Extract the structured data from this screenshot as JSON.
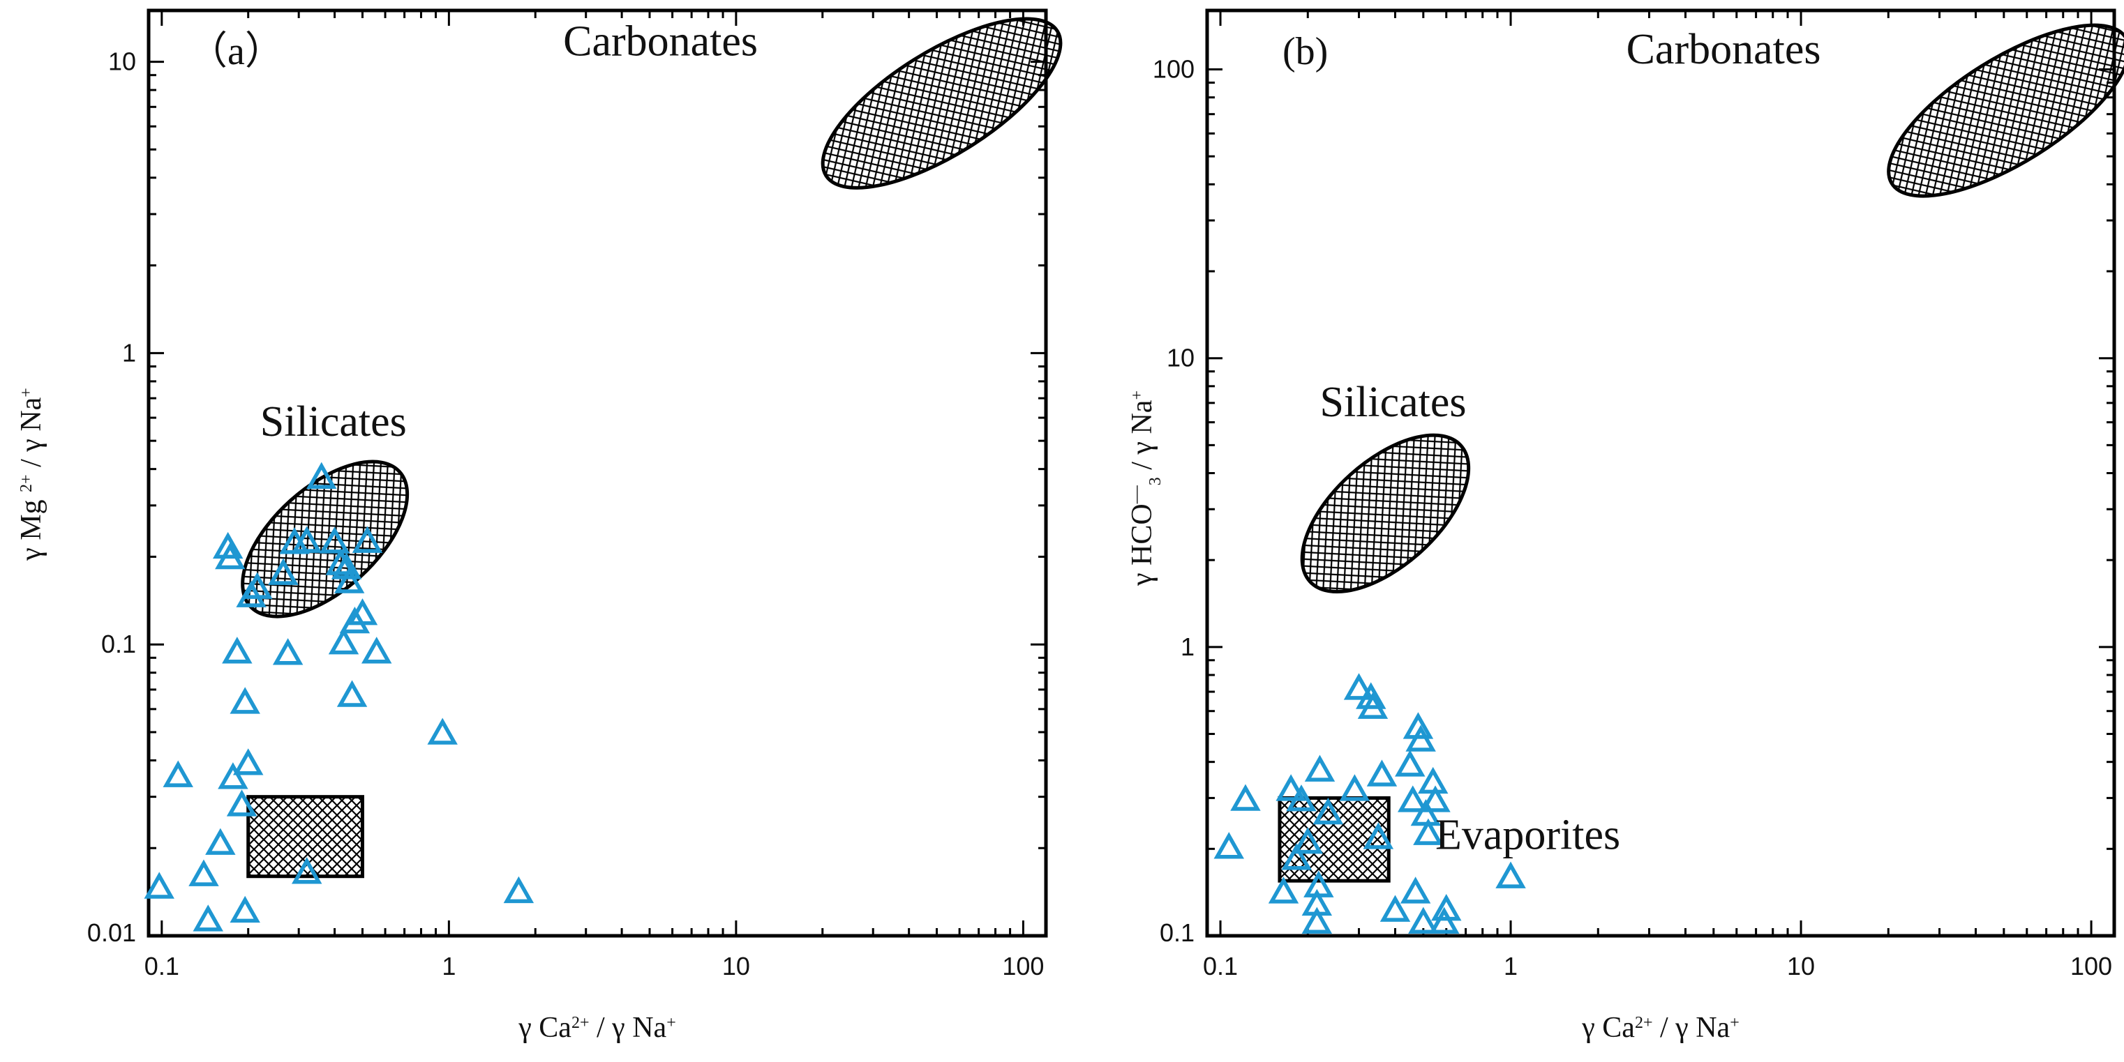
{
  "chart_data": [
    {
      "type": "scatter",
      "panel_label": "（a）",
      "x_scale": "log",
      "y_scale": "log",
      "xlim": [
        0.09,
        120
      ],
      "ylim": [
        0.01,
        15
      ],
      "x_ticks": [
        0.1,
        1,
        10,
        100
      ],
      "x_tick_labels": [
        "0.1",
        "1",
        "10",
        "100"
      ],
      "y_ticks": [
        0.01,
        0.1,
        1,
        10
      ],
      "y_tick_labels": [
        "0.01",
        "0.1",
        "1",
        "10"
      ],
      "xlabel_html": "γ Ca<tspan baseline-shift=\"super\" font-size=\"24\">2+</tspan> /  γ Na<tspan baseline-shift=\"super\" font-size=\"24\">+</tspan>",
      "xlabel_parts": {
        "a": "γ Ca",
        "a_sup": "2+",
        "b": " /  γ Na",
        "b_sup": "+"
      },
      "ylabel_parts": {
        "a": "γ Mg ",
        "a_sup": "2+",
        "b": " /  γ Na",
        "b_sup": "+"
      },
      "regions": [
        {
          "name": "Carbonates",
          "shape": "ellipse",
          "center": [
            52,
            7.2
          ],
          "span_decades": [
            0.95,
            0.36
          ],
          "tilt_deg": -32,
          "label_at": [
            2.5,
            10.5
          ]
        },
        {
          "name": "Silicates",
          "shape": "ellipse",
          "center": [
            0.37,
            0.23
          ],
          "span_decades": [
            0.7,
            0.36
          ],
          "tilt_deg": -42,
          "label_at": [
            0.22,
            0.52
          ]
        },
        {
          "name": "Evaporites",
          "shape": "rect",
          "x_range": [
            0.2,
            0.5
          ],
          "y_range": [
            0.016,
            0.03
          ],
          "labeled": false
        }
      ],
      "series": [
        {
          "name": "samples",
          "marker": "triangle-open",
          "color": "#1f97d2",
          "points": [
            [
              0.098,
              0.0145
            ],
            [
              0.114,
              0.035
            ],
            [
              0.14,
              0.016
            ],
            [
              0.145,
              0.0112
            ],
            [
              0.16,
              0.0205
            ],
            [
              0.17,
              0.213
            ],
            [
              0.173,
              0.196
            ],
            [
              0.177,
              0.0345
            ],
            [
              0.183,
              0.093
            ],
            [
              0.19,
              0.0278
            ],
            [
              0.195,
              0.0625
            ],
            [
              0.2,
              0.0385
            ],
            [
              0.195,
              0.012
            ],
            [
              0.205,
              0.145
            ],
            [
              0.215,
              0.155
            ],
            [
              0.265,
              0.173
            ],
            [
              0.275,
              0.092
            ],
            [
              0.29,
              0.221
            ],
            [
              0.32,
              0.223
            ],
            [
              0.32,
              0.0163
            ],
            [
              0.36,
              0.37
            ],
            [
              0.4,
              0.222
            ],
            [
              0.42,
              0.187
            ],
            [
              0.43,
              0.1
            ],
            [
              0.44,
              0.181
            ],
            [
              0.45,
              0.162
            ],
            [
              0.46,
              0.066
            ],
            [
              0.47,
              0.118
            ],
            [
              0.5,
              0.126
            ],
            [
              0.52,
              0.223
            ],
            [
              0.56,
              0.093
            ],
            [
              0.95,
              0.049
            ],
            [
              1.75,
              0.014
            ]
          ]
        }
      ]
    },
    {
      "type": "scatter",
      "panel_label": "(b)",
      "x_scale": "log",
      "y_scale": "log",
      "xlim": [
        0.09,
        120
      ],
      "ylim": [
        0.1,
        160
      ],
      "x_ticks": [
        0.1,
        1,
        10,
        100
      ],
      "x_tick_labels": [
        "0.1",
        "1",
        "10",
        "100"
      ],
      "y_ticks": [
        0.1,
        1,
        10,
        100
      ],
      "y_tick_labels": [
        "0.1",
        "1",
        "10",
        "100"
      ],
      "xlabel_parts": {
        "a": "γ Ca",
        "a_sup": "2+",
        "b": " /  γ Na",
        "b_sup": "+"
      },
      "ylabel_parts": {
        "a": "γ HCO",
        "a_dash": "—",
        "a_sub": "3",
        "b": " /  γ Na",
        "b_sup": "+"
      },
      "regions": [
        {
          "name": "Carbonates",
          "shape": "ellipse",
          "center": [
            52,
            72
          ],
          "span_decades": [
            0.95,
            0.36
          ],
          "tilt_deg": -32,
          "label_at": [
            2.5,
            105
          ]
        },
        {
          "name": "Silicates",
          "shape": "ellipse",
          "center": [
            0.37,
            2.9
          ],
          "span_decades": [
            0.7,
            0.36
          ],
          "tilt_deg": -42,
          "label_at": [
            0.22,
            6.3
          ]
        },
        {
          "name": "Evaporites",
          "shape": "rect",
          "x_range": [
            0.16,
            0.38
          ],
          "y_range": [
            0.155,
            0.3
          ],
          "labeled": true,
          "label_at": [
            0.55,
            0.2
          ]
        }
      ],
      "series": [
        {
          "name": "samples",
          "marker": "triangle-open",
          "color": "#1f97d2",
          "points": [
            [
              0.107,
              0.2
            ],
            [
              0.122,
              0.293
            ],
            [
              0.165,
              0.14
            ],
            [
              0.175,
              0.317
            ],
            [
              0.183,
              0.183
            ],
            [
              0.19,
              0.292
            ],
            [
              0.2,
              0.208
            ],
            [
              0.215,
              0.11
            ],
            [
              0.215,
              0.127
            ],
            [
              0.218,
              0.147
            ],
            [
              0.22,
              0.37
            ],
            [
              0.235,
              0.263
            ],
            [
              0.29,
              0.317
            ],
            [
              0.3,
              0.71
            ],
            [
              0.33,
              0.66
            ],
            [
              0.335,
              0.61
            ],
            [
              0.35,
              0.216
            ],
            [
              0.36,
              0.356
            ],
            [
              0.4,
              0.121
            ],
            [
              0.45,
              0.385
            ],
            [
              0.46,
              0.29
            ],
            [
              0.47,
              0.14
            ],
            [
              0.48,
              0.52
            ],
            [
              0.49,
              0.47
            ],
            [
              0.5,
              0.11
            ],
            [
              0.51,
              0.26
            ],
            [
              0.52,
              0.223
            ],
            [
              0.54,
              0.336
            ],
            [
              0.55,
              0.29
            ],
            [
              0.59,
              0.11
            ],
            [
              0.6,
              0.122
            ],
            [
              1.0,
              0.158
            ]
          ]
        }
      ]
    }
  ]
}
